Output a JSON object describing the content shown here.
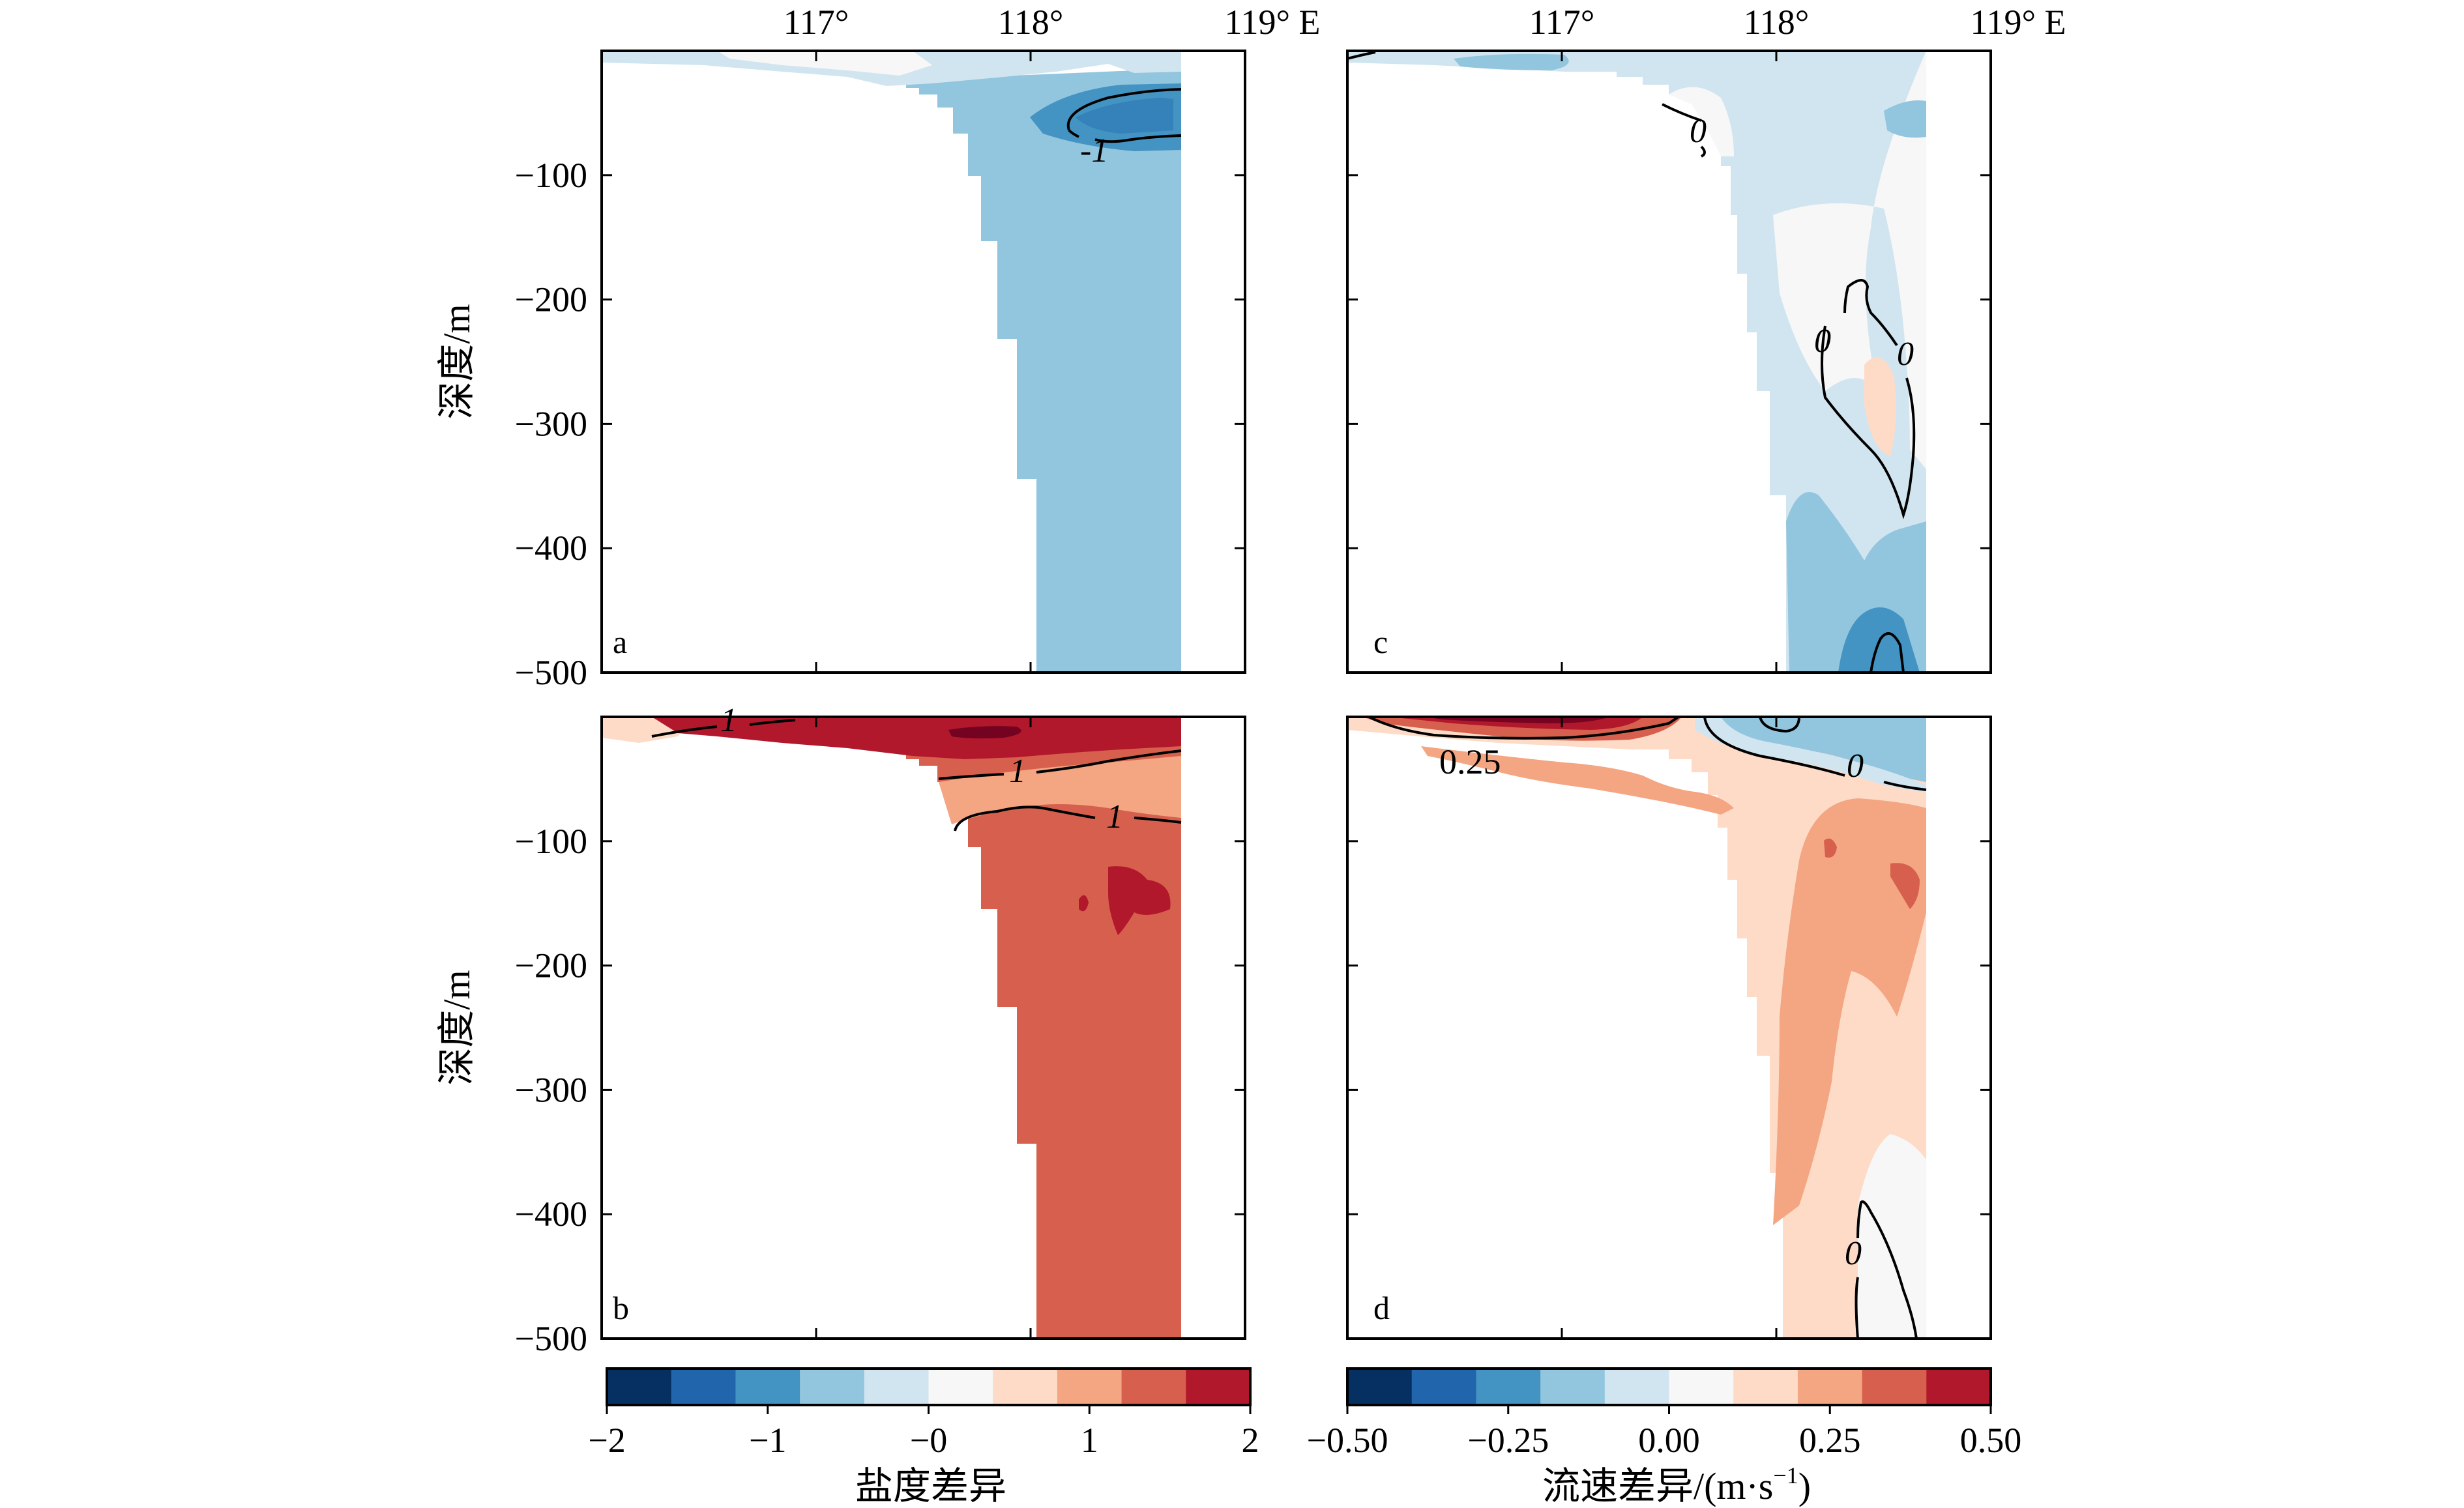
{
  "chart_data": [
    {
      "id": "a",
      "type": "contourf",
      "panel_label": "a",
      "x_ticks": [
        "117°",
        "118°",
        "119° E"
      ],
      "x_tick_values": [
        117,
        118,
        119
      ],
      "xlim": [
        116.0,
        119.0
      ],
      "ylabel": "深度/m",
      "y_ticks": [
        "−100",
        "−200",
        "−300",
        "−400",
        "−500"
      ],
      "y_tick_values": [
        -100,
        -200,
        -300,
        -400,
        -500
      ],
      "ylim": [
        -500,
        0
      ],
      "colormap": "RdBu_r",
      "levels": [
        -2,
        -1.6,
        -1.2,
        -0.8,
        -0.4,
        0,
        0.4,
        0.8,
        1.2,
        1.6,
        2
      ],
      "contour_labels": [
        {
          "text": "-1",
          "lon": 118.45,
          "depth": -60
        }
      ]
    },
    {
      "id": "b",
      "type": "contourf",
      "panel_label": "b",
      "ylabel": "深度/m",
      "y_ticks": [
        "−100",
        "−200",
        "−300",
        "−400",
        "−500"
      ],
      "y_tick_values": [
        -100,
        -200,
        -300,
        -400,
        -500
      ],
      "ylim": [
        -500,
        0
      ],
      "contour_labels": [
        {
          "text": "1",
          "lon": 117.0,
          "depth": -5
        },
        {
          "text": "1",
          "lon": 118.1,
          "depth": -40
        },
        {
          "text": "1",
          "lon": 118.5,
          "depth": -80
        }
      ]
    },
    {
      "id": "c",
      "type": "contourf",
      "panel_label": "c",
      "x_ticks": [
        "117°",
        "118°",
        "119° E"
      ],
      "x_tick_values": [
        117,
        118,
        119
      ],
      "xlim": [
        116.0,
        119.0
      ],
      "ylim": [
        -500,
        0
      ],
      "levels": [
        -0.5,
        -0.4,
        -0.3,
        -0.2,
        -0.1,
        0,
        0.1,
        0.2,
        0.3,
        0.4,
        0.5
      ],
      "contour_labels": [
        {
          "text": "0",
          "lon": 117.85,
          "depth": -40
        },
        {
          "text": "0",
          "lon": 118.3,
          "depth": -205
        },
        {
          "text": "0",
          "lon": 118.65,
          "depth": -210
        }
      ]
    },
    {
      "id": "d",
      "type": "contourf",
      "panel_label": "d",
      "ylim": [
        -500,
        0
      ],
      "contour_labels": [
        {
          "text": "0.25",
          "lon": 117.0,
          "depth": -35
        },
        {
          "text": "0",
          "lon": 118.45,
          "depth": -35
        },
        {
          "text": "0",
          "lon": 118.45,
          "depth": -435
        }
      ]
    }
  ],
  "colorbars": [
    {
      "id": "salinity",
      "title": "盐度差异",
      "tick_labels": [
        "−2",
        "−1",
        "−0",
        "1",
        "2"
      ],
      "tick_values": [
        -2,
        -1,
        0,
        1,
        2
      ],
      "range": [
        -2,
        2
      ],
      "colors": [
        "#053061",
        "#2166ac",
        "#4393c3",
        "#92c5de",
        "#d1e5f0",
        "#f7f7f7",
        "#fddbc7",
        "#f4a582",
        "#d6604d",
        "#b2182b"
      ]
    },
    {
      "id": "velocity",
      "title": "流速差异/(m·s",
      "title_sup": "−1",
      "title_end": ")",
      "tick_labels": [
        "−0.50",
        "−0.25",
        "0.00",
        "0.25",
        "0.50"
      ],
      "tick_values": [
        -0.5,
        -0.25,
        0,
        0.25,
        0.5
      ],
      "range": [
        -0.5,
        0.5
      ],
      "colors": [
        "#053061",
        "#2166ac",
        "#4393c3",
        "#92c5de",
        "#d1e5f0",
        "#f7f7f7",
        "#fddbc7",
        "#f4a582",
        "#d6604d",
        "#b2182b"
      ]
    }
  ]
}
